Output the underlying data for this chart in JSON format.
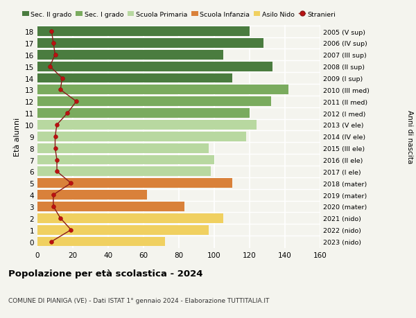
{
  "ages": [
    18,
    17,
    16,
    15,
    14,
    13,
    12,
    11,
    10,
    9,
    8,
    7,
    6,
    5,
    4,
    3,
    2,
    1,
    0
  ],
  "labels_right": [
    "2005 (V sup)",
    "2006 (IV sup)",
    "2007 (III sup)",
    "2008 (II sup)",
    "2009 (I sup)",
    "2010 (III med)",
    "2011 (II med)",
    "2012 (I med)",
    "2013 (V ele)",
    "2014 (IV ele)",
    "2015 (III ele)",
    "2016 (II ele)",
    "2017 (I ele)",
    "2018 (mater)",
    "2019 (mater)",
    "2020 (mater)",
    "2021 (nido)",
    "2022 (nido)",
    "2023 (nido)"
  ],
  "bar_values": [
    120,
    128,
    105,
    133,
    110,
    142,
    132,
    120,
    124,
    118,
    97,
    100,
    98,
    110,
    62,
    83,
    105,
    97,
    72
  ],
  "bar_colors": [
    "#4a7c3f",
    "#4a7c3f",
    "#4a7c3f",
    "#4a7c3f",
    "#4a7c3f",
    "#7aab5e",
    "#7aab5e",
    "#7aab5e",
    "#b8d8a0",
    "#b8d8a0",
    "#b8d8a0",
    "#b8d8a0",
    "#b8d8a0",
    "#d9813a",
    "#d9813a",
    "#d9813a",
    "#f0d060",
    "#f0d060",
    "#f0d060"
  ],
  "stranieri_values": [
    8,
    9,
    10,
    7,
    14,
    13,
    22,
    17,
    11,
    10,
    10,
    11,
    11,
    19,
    9,
    9,
    13,
    19,
    8
  ],
  "legend_labels": [
    "Sec. II grado",
    "Sec. I grado",
    "Scuola Primaria",
    "Scuola Infanzia",
    "Asilo Nido",
    "Stranieri"
  ],
  "legend_colors": [
    "#4a7c3f",
    "#7aab5e",
    "#b8d8a0",
    "#d9813a",
    "#f0d060",
    "#aa0000"
  ],
  "title": "Popolazione per età scolastica - 2024",
  "subtitle": "COMUNE DI PIANIGA (VE) - Dati ISTAT 1° gennaio 2024 - Elaborazione TUTTITALIA.IT",
  "ylabel": "Età alunni",
  "ylabel_right": "Anni di nascita",
  "xlim": [
    0,
    160
  ],
  "xticks": [
    0,
    20,
    40,
    60,
    80,
    100,
    120,
    140,
    160
  ],
  "background_color": "#f4f4ee",
  "bar_height": 0.82
}
